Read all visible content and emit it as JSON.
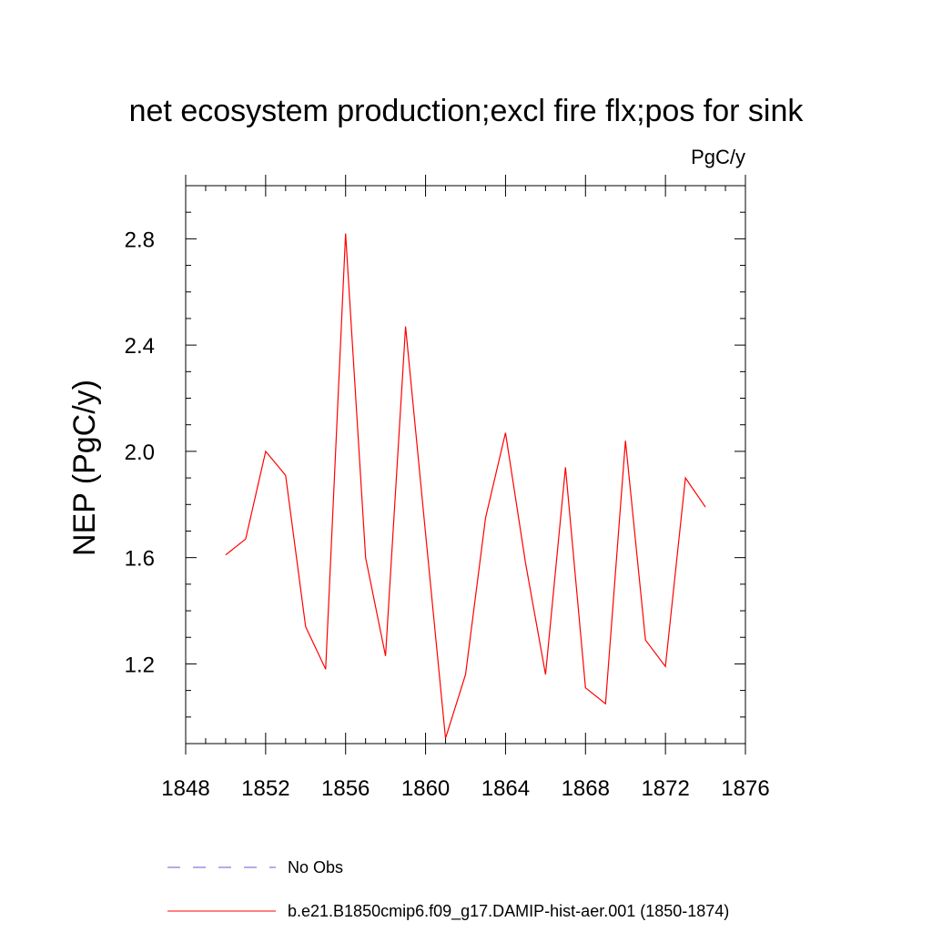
{
  "chart_data": {
    "type": "line",
    "title": "net ecosystem production;excl fire flx;pos for sink",
    "units": "PgC/y",
    "ylabel": "NEP  (PgC/y)",
    "xlabel": "",
    "xlim": [
      1848,
      1876
    ],
    "ylim": [
      0.9,
      3.0
    ],
    "x_ticks": [
      1848,
      1852,
      1856,
      1860,
      1864,
      1868,
      1872,
      1876
    ],
    "x_tick_labels": [
      "1848",
      "1852",
      "1856",
      "1860",
      "1864",
      "1868",
      "1872",
      "1876"
    ],
    "y_ticks": [
      1.2,
      1.6,
      2.0,
      2.4,
      2.8
    ],
    "y_tick_labels": [
      "1.2",
      "1.6",
      "2.0",
      "2.4",
      "2.8"
    ],
    "grid": false,
    "legend_position": "bottom",
    "series": [
      {
        "name": "b.e21.B1850cmip6.f09_g17.DAMIP-hist-aer.001 (1850-1874)",
        "color": "#ff0000",
        "style": "solid",
        "x": [
          1850,
          1851,
          1852,
          1853,
          1854,
          1855,
          1856,
          1857,
          1858,
          1859,
          1860,
          1861,
          1862,
          1863,
          1864,
          1865,
          1866,
          1867,
          1868,
          1869,
          1870,
          1871,
          1872,
          1873,
          1874
        ],
        "values": [
          1.61,
          1.67,
          2.0,
          1.91,
          1.34,
          1.18,
          2.82,
          1.6,
          1.23,
          2.47,
          1.69,
          0.92,
          1.16,
          1.75,
          2.07,
          1.58,
          1.16,
          1.94,
          1.11,
          1.05,
          2.04,
          1.29,
          1.19,
          1.9,
          1.79
        ]
      },
      {
        "name": "No Obs",
        "color": "#6a5acd",
        "style": "dashed",
        "x": [],
        "values": []
      }
    ]
  }
}
